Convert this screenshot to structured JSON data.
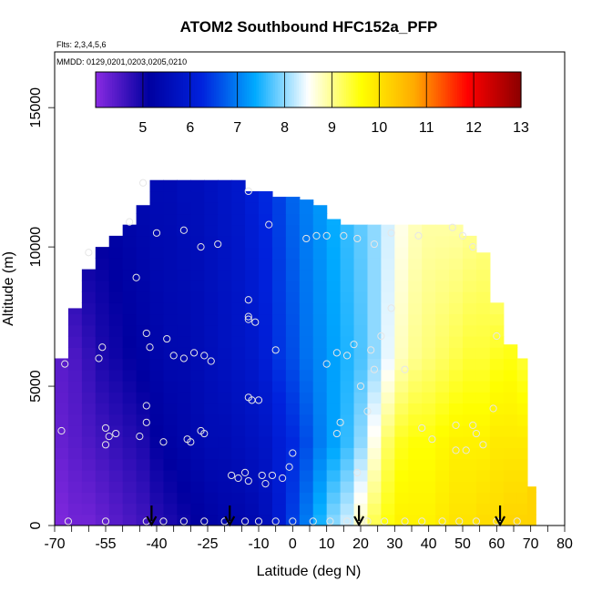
{
  "chart_data": {
    "type": "heatmap",
    "title": "ATOM2 Southbound HFC152a_PFP",
    "subtitle_lines": [
      "Flts: 2,3,4,5,6",
      "MMDD: 0129,0201,0203,0205,0210"
    ],
    "xlabel": "Latitude (deg N)",
    "ylabel": "Altitude (m)",
    "xlim": [
      -70,
      80
    ],
    "ylim": [
      0,
      17000
    ],
    "x_ticks": [
      -70,
      -55,
      -40,
      -25,
      -10,
      0,
      10,
      20,
      30,
      40,
      50,
      60,
      70,
      80
    ],
    "x_minor_step": 5,
    "y_ticks": [
      0,
      5000,
      10000,
      15000
    ],
    "colorbar": {
      "min": 4,
      "max": 13,
      "ticks": [
        5,
        6,
        7,
        8,
        9,
        10,
        11,
        12,
        13
      ],
      "stops": [
        "#8a2be2",
        "#0000a0",
        "#0022dd",
        "#00aaff",
        "#ffffff",
        "#ffff00",
        "#ffaa00",
        "#ff0000",
        "#8b0000"
      ]
    },
    "field_columns": [
      {
        "lat": -68,
        "top": 6000,
        "values": [
          [
            0,
            4.1
          ],
          [
            3000,
            4.3
          ],
          [
            6000,
            4.4
          ]
        ]
      },
      {
        "lat": -64,
        "top": 7800,
        "values": [
          [
            0,
            4.2
          ],
          [
            3000,
            4.4
          ],
          [
            6000,
            4.5
          ],
          [
            7800,
            4.7
          ]
        ]
      },
      {
        "lat": -60,
        "top": 9200,
        "values": [
          [
            0,
            4.2
          ],
          [
            3000,
            4.5
          ],
          [
            6000,
            4.7
          ],
          [
            9200,
            5.0
          ]
        ]
      },
      {
        "lat": -56,
        "top": 10000,
        "values": [
          [
            0,
            4.3
          ],
          [
            3000,
            4.6
          ],
          [
            6000,
            4.9
          ],
          [
            10000,
            5.1
          ]
        ]
      },
      {
        "lat": -52,
        "top": 10400,
        "values": [
          [
            0,
            4.4
          ],
          [
            3000,
            4.7
          ],
          [
            6000,
            5.0
          ],
          [
            10400,
            5.2
          ]
        ]
      },
      {
        "lat": -48,
        "top": 10800,
        "values": [
          [
            0,
            4.5
          ],
          [
            3000,
            4.8
          ],
          [
            6000,
            5.1
          ],
          [
            10800,
            5.3
          ]
        ]
      },
      {
        "lat": -44,
        "top": 11500,
        "values": [
          [
            0,
            4.6
          ],
          [
            3000,
            4.9
          ],
          [
            6000,
            5.2
          ],
          [
            11500,
            5.4
          ]
        ]
      },
      {
        "lat": -40,
        "top": 12400,
        "values": [
          [
            0,
            4.8
          ],
          [
            3000,
            5.1
          ],
          [
            6000,
            5.3
          ],
          [
            12400,
            5.5
          ]
        ]
      },
      {
        "lat": -36,
        "top": 12400,
        "values": [
          [
            0,
            4.9
          ],
          [
            3000,
            5.2
          ],
          [
            6000,
            5.4
          ],
          [
            12400,
            5.5
          ]
        ]
      },
      {
        "lat": -32,
        "top": 12400,
        "values": [
          [
            0,
            5.0
          ],
          [
            3000,
            5.3
          ],
          [
            6000,
            5.4
          ],
          [
            12400,
            5.6
          ]
        ]
      },
      {
        "lat": -28,
        "top": 12400,
        "values": [
          [
            0,
            5.1
          ],
          [
            3000,
            5.4
          ],
          [
            6000,
            5.5
          ],
          [
            12400,
            5.6
          ]
        ]
      },
      {
        "lat": -24,
        "top": 12400,
        "values": [
          [
            0,
            5.2
          ],
          [
            3000,
            5.5
          ],
          [
            6000,
            5.6
          ],
          [
            12400,
            5.7
          ]
        ]
      },
      {
        "lat": -20,
        "top": 12400,
        "values": [
          [
            0,
            5.3
          ],
          [
            3000,
            5.5
          ],
          [
            6000,
            5.7
          ],
          [
            12400,
            5.8
          ]
        ]
      },
      {
        "lat": -16,
        "top": 12400,
        "values": [
          [
            0,
            5.3
          ],
          [
            3000,
            5.6
          ],
          [
            6000,
            5.8
          ],
          [
            12400,
            5.9
          ]
        ]
      },
      {
        "lat": -12,
        "top": 12000,
        "values": [
          [
            0,
            5.4
          ],
          [
            3000,
            5.7
          ],
          [
            6000,
            5.9
          ],
          [
            12000,
            6.1
          ]
        ]
      },
      {
        "lat": -8,
        "top": 12000,
        "values": [
          [
            0,
            5.6
          ],
          [
            3000,
            5.8
          ],
          [
            6000,
            6.1
          ],
          [
            12000,
            6.3
          ]
        ]
      },
      {
        "lat": -4,
        "top": 11800,
        "values": [
          [
            0,
            6.0
          ],
          [
            3000,
            6.1
          ],
          [
            6000,
            6.4
          ],
          [
            11800,
            6.5
          ]
        ]
      },
      {
        "lat": 0,
        "top": 11800,
        "values": [
          [
            0,
            6.5
          ],
          [
            3000,
            6.3
          ],
          [
            6000,
            6.6
          ],
          [
            11800,
            6.8
          ]
        ]
      },
      {
        "lat": 4,
        "top": 11700,
        "values": [
          [
            0,
            7.0
          ],
          [
            3000,
            6.6
          ],
          [
            6000,
            6.9
          ],
          [
            11700,
            7.0
          ]
        ]
      },
      {
        "lat": 8,
        "top": 11500,
        "values": [
          [
            0,
            7.5
          ],
          [
            3000,
            7.0
          ],
          [
            6000,
            7.1
          ],
          [
            11500,
            7.2
          ]
        ]
      },
      {
        "lat": 12,
        "top": 11000,
        "values": [
          [
            0,
            8.0
          ],
          [
            3000,
            7.3
          ],
          [
            6000,
            7.3
          ],
          [
            11000,
            7.4
          ]
        ]
      },
      {
        "lat": 16,
        "top": 10800,
        "values": [
          [
            0,
            8.3
          ],
          [
            3000,
            7.6
          ],
          [
            6000,
            7.5
          ],
          [
            10800,
            7.6
          ]
        ]
      },
      {
        "lat": 20,
        "top": 10800,
        "values": [
          [
            0,
            8.8
          ],
          [
            3000,
            8.0
          ],
          [
            6000,
            7.7
          ],
          [
            10800,
            7.8
          ]
        ]
      },
      {
        "lat": 24,
        "top": 10800,
        "values": [
          [
            0,
            9.3
          ],
          [
            3000,
            8.6
          ],
          [
            6000,
            8.0
          ],
          [
            10800,
            8.0
          ]
        ]
      },
      {
        "lat": 28,
        "top": 10800,
        "values": [
          [
            0,
            9.6
          ],
          [
            3000,
            9.2
          ],
          [
            6000,
            8.4
          ],
          [
            10800,
            8.3
          ]
        ]
      },
      {
        "lat": 32,
        "top": 10800,
        "values": [
          [
            0,
            9.8
          ],
          [
            3000,
            9.5
          ],
          [
            6000,
            8.8
          ],
          [
            10800,
            8.6
          ]
        ]
      },
      {
        "lat": 36,
        "top": 10800,
        "values": [
          [
            0,
            9.8
          ],
          [
            3000,
            9.6
          ],
          [
            6000,
            9.0
          ],
          [
            10800,
            8.8
          ]
        ]
      },
      {
        "lat": 40,
        "top": 10800,
        "values": [
          [
            0,
            9.8
          ],
          [
            3000,
            9.6
          ],
          [
            6000,
            9.1
          ],
          [
            10800,
            8.9
          ]
        ]
      },
      {
        "lat": 44,
        "top": 10800,
        "values": [
          [
            0,
            9.9
          ],
          [
            3000,
            9.7
          ],
          [
            6000,
            9.2
          ],
          [
            10800,
            8.9
          ]
        ]
      },
      {
        "lat": 48,
        "top": 10800,
        "values": [
          [
            0,
            10.0
          ],
          [
            3000,
            9.8
          ],
          [
            6000,
            9.3
          ],
          [
            10800,
            8.9
          ]
        ]
      },
      {
        "lat": 52,
        "top": 10400,
        "values": [
          [
            0,
            10.0
          ],
          [
            3000,
            9.8
          ],
          [
            6000,
            9.4
          ],
          [
            10400,
            9.0
          ]
        ]
      },
      {
        "lat": 56,
        "top": 9800,
        "values": [
          [
            0,
            10.1
          ],
          [
            3000,
            9.8
          ],
          [
            6000,
            9.4
          ],
          [
            9800,
            9.1
          ]
        ]
      },
      {
        "lat": 60,
        "top": 8000,
        "values": [
          [
            0,
            10.1
          ],
          [
            3000,
            9.9
          ],
          [
            6000,
            9.5
          ],
          [
            8000,
            9.2
          ]
        ]
      },
      {
        "lat": 64,
        "top": 6500,
        "values": [
          [
            0,
            10.2
          ],
          [
            3000,
            9.9
          ],
          [
            6500,
            9.5
          ]
        ]
      },
      {
        "lat": 68,
        "top": 6000,
        "values": [
          [
            0,
            10.2
          ],
          [
            3000,
            9.9
          ],
          [
            6000,
            9.4
          ]
        ]
      },
      {
        "lat": 70,
        "top": 1400,
        "values": [
          [
            0,
            10.2
          ],
          [
            1400,
            10.2
          ]
        ]
      }
    ],
    "sample_points": [
      {
        "lat": -68,
        "alt": 3400
      },
      {
        "lat": -67,
        "alt": 5800
      },
      {
        "lat": -60,
        "alt": 9800
      },
      {
        "lat": -57,
        "alt": 6000
      },
      {
        "lat": -56,
        "alt": 6400
      },
      {
        "lat": -55,
        "alt": 3500
      },
      {
        "lat": -54,
        "alt": 3200
      },
      {
        "lat": -52,
        "alt": 3300
      },
      {
        "lat": -55,
        "alt": 2900
      },
      {
        "lat": -48,
        "alt": 10900
      },
      {
        "lat": -46,
        "alt": 8900
      },
      {
        "lat": -44,
        "alt": 12300
      },
      {
        "lat": -43,
        "alt": 6900
      },
      {
        "lat": -42,
        "alt": 6400
      },
      {
        "lat": -43,
        "alt": 4300
      },
      {
        "lat": -43,
        "alt": 3700
      },
      {
        "lat": -45,
        "alt": 3200
      },
      {
        "lat": -40,
        "alt": 10500
      },
      {
        "lat": -37,
        "alt": 6700
      },
      {
        "lat": -35,
        "alt": 6100
      },
      {
        "lat": -32,
        "alt": 10600
      },
      {
        "lat": -32,
        "alt": 6000
      },
      {
        "lat": -29,
        "alt": 6200
      },
      {
        "lat": -27,
        "alt": 10000
      },
      {
        "lat": -26,
        "alt": 6100
      },
      {
        "lat": -24,
        "alt": 5900
      },
      {
        "lat": -22,
        "alt": 10100
      },
      {
        "lat": -38,
        "alt": 3000
      },
      {
        "lat": -31,
        "alt": 3100
      },
      {
        "lat": -30,
        "alt": 3000
      },
      {
        "lat": -27,
        "alt": 3400
      },
      {
        "lat": -26,
        "alt": 3300
      },
      {
        "lat": -13,
        "alt": 12000
      },
      {
        "lat": -7,
        "alt": 10800
      },
      {
        "lat": -13,
        "alt": 8100
      },
      {
        "lat": -13,
        "alt": 7500
      },
      {
        "lat": -13,
        "alt": 7400
      },
      {
        "lat": -11,
        "alt": 7300
      },
      {
        "lat": -5,
        "alt": 6300
      },
      {
        "lat": -13,
        "alt": 4600
      },
      {
        "lat": -12,
        "alt": 4500
      },
      {
        "lat": -10,
        "alt": 4500
      },
      {
        "lat": -6,
        "alt": 1800
      },
      {
        "lat": -9,
        "alt": 1800
      },
      {
        "lat": -14,
        "alt": 1900
      },
      {
        "lat": -16,
        "alt": 1700
      },
      {
        "lat": -18,
        "alt": 1800
      },
      {
        "lat": -13,
        "alt": 1600
      },
      {
        "lat": 0,
        "alt": 2600
      },
      {
        "lat": -3,
        "alt": 1700
      },
      {
        "lat": -1,
        "alt": 2100
      },
      {
        "lat": -8,
        "alt": 1500
      },
      {
        "lat": 4,
        "alt": 10300
      },
      {
        "lat": 7,
        "alt": 10400
      },
      {
        "lat": 10,
        "alt": 10400
      },
      {
        "lat": 15,
        "alt": 10400
      },
      {
        "lat": 19,
        "alt": 10300
      },
      {
        "lat": 24,
        "alt": 10100
      },
      {
        "lat": 29,
        "alt": 10500
      },
      {
        "lat": 37,
        "alt": 10400
      },
      {
        "lat": 47,
        "alt": 10700
      },
      {
        "lat": 53,
        "alt": 10000
      },
      {
        "lat": 50,
        "alt": 10400
      },
      {
        "lat": 29,
        "alt": 7800
      },
      {
        "lat": 26,
        "alt": 6800
      },
      {
        "lat": 23,
        "alt": 6300
      },
      {
        "lat": 18,
        "alt": 6500
      },
      {
        "lat": 16,
        "alt": 6100
      },
      {
        "lat": 13,
        "alt": 6200
      },
      {
        "lat": 10,
        "alt": 5800
      },
      {
        "lat": 24,
        "alt": 5600
      },
      {
        "lat": 33,
        "alt": 5600
      },
      {
        "lat": 20,
        "alt": 5000
      },
      {
        "lat": 22,
        "alt": 4100
      },
      {
        "lat": 38,
        "alt": 3500
      },
      {
        "lat": 48,
        "alt": 3600
      },
      {
        "lat": 53,
        "alt": 3600
      },
      {
        "lat": 54,
        "alt": 3300
      },
      {
        "lat": 41,
        "alt": 3100
      },
      {
        "lat": 48,
        "alt": 2700
      },
      {
        "lat": 51,
        "alt": 2700
      },
      {
        "lat": 56,
        "alt": 2900
      },
      {
        "lat": 59,
        "alt": 4200
      },
      {
        "lat": 60,
        "alt": 6800
      },
      {
        "lat": 19,
        "alt": 1900
      },
      {
        "lat": 13,
        "alt": 3300
      },
      {
        "lat": 14,
        "alt": 3700
      },
      {
        "lat": -66,
        "alt": 150
      },
      {
        "lat": -55,
        "alt": 150
      },
      {
        "lat": -43,
        "alt": 150
      },
      {
        "lat": -38,
        "alt": 150
      },
      {
        "lat": -32,
        "alt": 150
      },
      {
        "lat": -26,
        "alt": 150
      },
      {
        "lat": -20,
        "alt": 150
      },
      {
        "lat": -14,
        "alt": 150
      },
      {
        "lat": -10,
        "alt": 150
      },
      {
        "lat": -5,
        "alt": 150
      },
      {
        "lat": 0,
        "alt": 150
      },
      {
        "lat": 6,
        "alt": 150
      },
      {
        "lat": 11,
        "alt": 150
      },
      {
        "lat": 16,
        "alt": 150
      },
      {
        "lat": 22,
        "alt": 150
      },
      {
        "lat": 27,
        "alt": 150
      },
      {
        "lat": 33,
        "alt": 150
      },
      {
        "lat": 38,
        "alt": 150
      },
      {
        "lat": 44,
        "alt": 150
      },
      {
        "lat": 49,
        "alt": 150
      },
      {
        "lat": 54,
        "alt": 150
      },
      {
        "lat": 60,
        "alt": 150
      },
      {
        "lat": 66,
        "alt": 150
      }
    ],
    "arrow_markers": [
      -41.5,
      -18.5,
      19.5,
      61
    ]
  }
}
